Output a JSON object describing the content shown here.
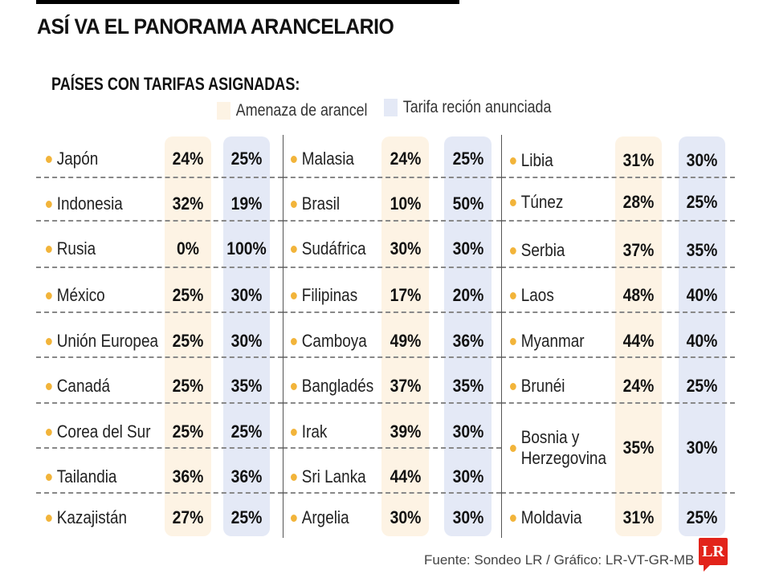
{
  "title": "ASÍ VA EL PANORAMA ARANCELARIO",
  "subtitle": "PAÍSES CON TARIFAS ASIGNADAS:",
  "legend": {
    "threat": "Amenaza de arancel",
    "announced": "Tarifa reción anunciada",
    "threat_color": "#fdf3e4",
    "announced_color": "#e4e9f6"
  },
  "columns": [
    {
      "rows": [
        {
          "country": "Japón",
          "threat": "24%",
          "announced": "25%"
        },
        {
          "country": "Indonesia",
          "threat": "32%",
          "announced": "19%"
        },
        {
          "country": "Rusia",
          "threat": "0%",
          "announced": "100%"
        },
        {
          "country": "México",
          "threat": "25%",
          "announced": "30%"
        },
        {
          "country": "Unión Europea",
          "threat": "25%",
          "announced": "30%"
        },
        {
          "country": "Canadá",
          "threat": "25%",
          "announced": "35%"
        },
        {
          "country": "Corea del Sur",
          "threat": "25%",
          "announced": "25%"
        },
        {
          "country": "Tailandia",
          "threat": "36%",
          "announced": "36%"
        },
        {
          "country": "Kazajistán",
          "threat": "27%",
          "announced": "25%"
        }
      ]
    },
    {
      "rows": [
        {
          "country": "Malasia",
          "threat": "24%",
          "announced": "25%"
        },
        {
          "country": "Brasil",
          "threat": "10%",
          "announced": "50%"
        },
        {
          "country": "Sudáfrica",
          "threat": "30%",
          "announced": "30%"
        },
        {
          "country": "Filipinas",
          "threat": "17%",
          "announced": "20%"
        },
        {
          "country": "Camboya",
          "threat": "49%",
          "announced": "36%"
        },
        {
          "country": "Bangladés",
          "threat": "37%",
          "announced": "35%"
        },
        {
          "country": "Irak",
          "threat": "39%",
          "announced": "30%"
        },
        {
          "country": "Sri Lanka",
          "threat": "44%",
          "announced": "30%"
        },
        {
          "country": "Argelia",
          "threat": "30%",
          "announced": "30%"
        }
      ]
    },
    {
      "rows": [
        {
          "country": "Libia",
          "threat": "31%",
          "announced": "30%"
        },
        {
          "country": "Túnez",
          "threat": "28%",
          "announced": "25%"
        },
        {
          "country": "Serbia",
          "threat": "37%",
          "announced": "35%"
        },
        {
          "country": "Laos",
          "threat": "48%",
          "announced": "40%"
        },
        {
          "country": "Myanmar",
          "threat": "44%",
          "announced": "40%"
        },
        {
          "country": "Brunéi",
          "threat": "24%",
          "announced": "25%"
        },
        {
          "country": "Bosnia y Herzegovina",
          "threat": "35%",
          "announced": "30%"
        },
        {
          "country": "Moldavia",
          "threat": "31%",
          "announced": "25%"
        }
      ]
    }
  ],
  "source": "Fuente: Sondeo LR / Gráfico: LR-VT-GR-MB",
  "logo": "LR"
}
